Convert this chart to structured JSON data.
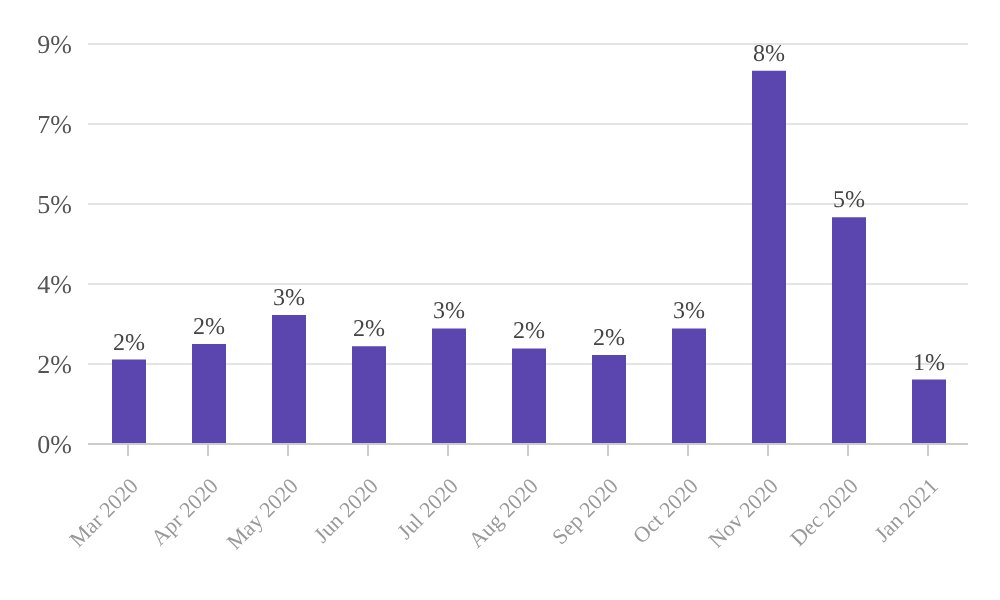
{
  "chart_data": {
    "type": "bar",
    "categories": [
      "Mar 2020",
      "Apr 2020",
      "May 2020",
      "Jun 2020",
      "Jul 2020",
      "Aug 2020",
      "Sep 2020",
      "Oct 2020",
      "Nov 2020",
      "Dec 2020",
      "Jan 2021"
    ],
    "values": [
      1.9,
      2.25,
      2.9,
      2.2,
      2.6,
      2.15,
      2.0,
      2.6,
      8.4,
      5.1,
      1.45
    ],
    "value_labels": [
      "2%",
      "2%",
      "3%",
      "2%",
      "3%",
      "2%",
      "2%",
      "3%",
      "8%",
      "5%",
      "1%"
    ],
    "color": "#5b46b0",
    "ylim": [
      0,
      9
    ],
    "yticks": [
      {
        "value": 0,
        "label": "0%"
      },
      {
        "value": 1.8,
        "label": "2%"
      },
      {
        "value": 3.6,
        "label": "4%"
      },
      {
        "value": 5.4,
        "label": "5%"
      },
      {
        "value": 7.2,
        "label": "7%"
      },
      {
        "value": 9,
        "label": "9%"
      }
    ],
    "grid": "y"
  }
}
